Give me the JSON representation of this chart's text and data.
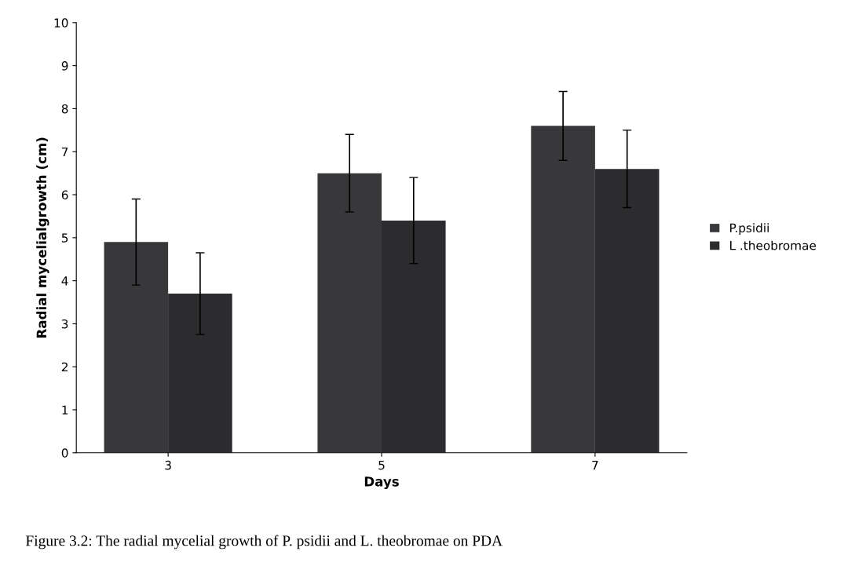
{
  "chart_data": {
    "type": "bar",
    "categories": [
      "3",
      "5",
      "7"
    ],
    "xlabel": "Days",
    "ylabel": "Radial mycelialgrowth (cm)",
    "series": [
      {
        "name": "P.psidii",
        "color": "#38383b",
        "values": [
          4.9,
          6.5,
          7.6
        ],
        "errors": [
          1.0,
          0.9,
          0.8
        ]
      },
      {
        "name": "L .theobromae",
        "color": "#2c2c2e",
        "values": [
          3.7,
          5.4,
          6.6
        ],
        "errors": [
          0.95,
          1.0,
          0.9
        ]
      }
    ],
    "ylim": [
      0,
      10
    ],
    "yticks": [
      0,
      1,
      2,
      3,
      4,
      5,
      6,
      7,
      8,
      9,
      10
    ],
    "grid": false,
    "legend": "right",
    "annotations": [
      "Figure 3.2: The radial mycelial growth of P. psidii and L. theobromae on PDA"
    ]
  }
}
